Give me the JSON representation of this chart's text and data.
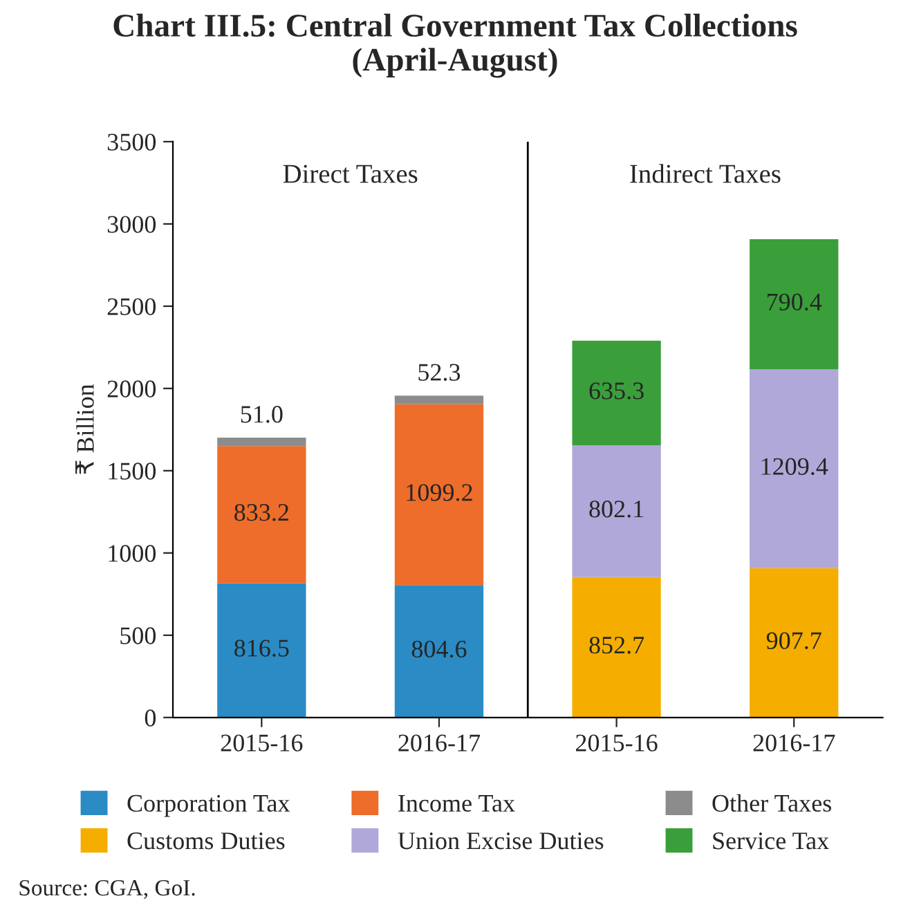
{
  "chart_data": {
    "type": "bar",
    "stacked": true,
    "title": "Chart III.5: Central Government Tax Collections\n(April-August)",
    "ylabel": "₹ Billion",
    "categories": [
      "2015-16",
      "2016-17",
      "2015-16",
      "2016-17"
    ],
    "series": [
      {
        "name": "Corporation Tax",
        "color": "#2a8bc5",
        "values": [
          816.5,
          804.6,
          null,
          null
        ],
        "value_labels": [
          "816.5",
          "804.6",
          null,
          null
        ]
      },
      {
        "name": "Income Tax",
        "color": "#ee6d2a",
        "values": [
          833.2,
          1099.2,
          null,
          null
        ],
        "value_labels": [
          "833.2",
          "1099.2",
          null,
          null
        ]
      },
      {
        "name": "Other Taxes",
        "color": "#8c8c8c",
        "values": [
          51,
          52.3,
          null,
          null
        ],
        "value_labels": [
          "51.0",
          "52.3",
          null,
          null
        ]
      },
      {
        "name": "Customs Duties",
        "color": "#f5ae00",
        "values": [
          null,
          null,
          852.7,
          907.7
        ],
        "value_labels": [
          null,
          null,
          "852.7",
          "907.7"
        ]
      },
      {
        "name": "Union Excise Duties",
        "color": "#b0a8d8",
        "values": [
          null,
          null,
          802.1,
          1209.4
        ],
        "value_labels": [
          null,
          null,
          "802.1",
          "1209.4"
        ]
      },
      {
        "name": "Service Tax",
        "color": "#3a9f3a",
        "values": [
          null,
          null,
          635.3,
          790.4
        ],
        "value_labels": [
          null,
          null,
          "635.3",
          "790.4"
        ]
      }
    ],
    "ylim": [
      0,
      3500
    ],
    "yticks": [
      0,
      500,
      1000,
      1500,
      2000,
      2500,
      3000,
      3500
    ],
    "legend": "bottom",
    "annotations": [
      "Direct Taxes",
      "Indirect Taxes",
      "Source: CGA, GoI."
    ]
  }
}
